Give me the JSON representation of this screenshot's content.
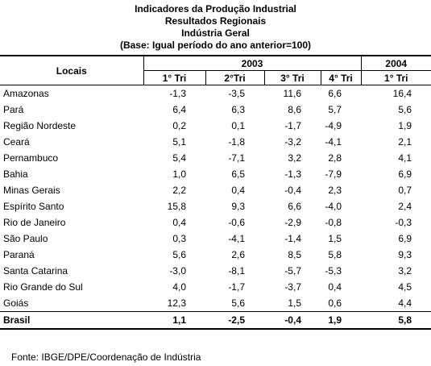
{
  "header": {
    "title": "Indicadores da Produção Industrial",
    "subtitle": "Resultados Regionais",
    "subject": "Indústria Geral",
    "base": "(Base: Igual período do ano anterior=100)"
  },
  "table": {
    "columns": {
      "place": "Locais",
      "year1": "2003",
      "year2": "2004",
      "quarters": [
        "1° Tri",
        "2°Tri",
        "3° Tri",
        "4° Tri",
        "1° Tri"
      ]
    },
    "rows": [
      [
        "Amazonas",
        "-1,3",
        "-3,5",
        "11,6",
        "6,6",
        "16,4"
      ],
      [
        "Pará",
        "6,4",
        "6,3",
        "8,6",
        "5,7",
        "5,6"
      ],
      [
        "Região Nordeste",
        "0,2",
        "0,1",
        "-1,7",
        "-4,9",
        "1,9"
      ],
      [
        "Ceará",
        "5,1",
        "-1,8",
        "-3,2",
        "-4,1",
        "2,1"
      ],
      [
        "Pernambuco",
        "5,4",
        "-7,1",
        "3,2",
        "2,8",
        "4,1"
      ],
      [
        "Bahia",
        "1,0",
        "6,5",
        "-1,3",
        "-7,9",
        "6,9"
      ],
      [
        "Minas Gerais",
        "2,2",
        "0,4",
        "-0,4",
        "2,3",
        "0,7"
      ],
      [
        "Espírito Santo",
        "15,8",
        "9,3",
        "6,6",
        "-4,0",
        "2,4"
      ],
      [
        "Rio de Janeiro",
        "0,4",
        "-0,6",
        "-2,9",
        "-0,8",
        "-0,3"
      ],
      [
        "São Paulo",
        "0,3",
        "-4,1",
        "-1,4",
        "1,5",
        "6,9"
      ],
      [
        "Paraná",
        "5,6",
        "2,6",
        "8,5",
        "5,8",
        "9,3"
      ],
      [
        "Santa Catarina",
        "-3,0",
        "-8,1",
        "-5,7",
        "-5,3",
        "3,2"
      ],
      [
        "Rio Grande do Sul",
        "4,0",
        "-1,7",
        "-3,7",
        "0,4",
        "4,5"
      ],
      [
        "Goiás",
        "12,3",
        "5,6",
        "1,5",
        "0,6",
        "4,4"
      ],
      [
        "Brasil",
        "1,1",
        "-2,5",
        "-0,4",
        "1,9",
        "5,8"
      ]
    ]
  },
  "footer": {
    "source": "Fonte: IBGE/DPE/Coordenação de Indústria"
  }
}
